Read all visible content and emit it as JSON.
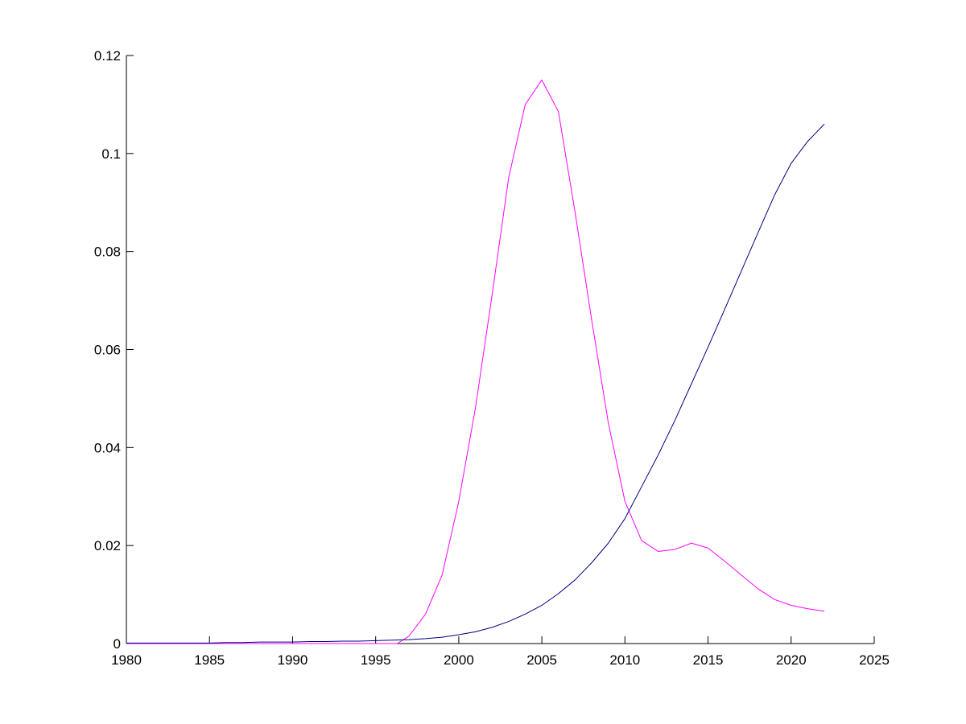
{
  "chart_data": {
    "type": "line",
    "title": "",
    "xlabel": "",
    "ylabel": "",
    "xlim": [
      1980,
      2025
    ],
    "ylim": [
      0,
      0.12
    ],
    "x_ticks": [
      1980,
      1985,
      1990,
      1995,
      2000,
      2005,
      2010,
      2015,
      2020,
      2025
    ],
    "x_tick_labels": [
      "1980",
      "1985",
      "1990",
      "1995",
      "2000",
      "2005",
      "2010",
      "2015",
      "2020",
      "2025"
    ],
    "y_ticks": [
      0,
      0.02,
      0.04,
      0.06,
      0.08,
      0.1,
      0.12
    ],
    "y_tick_labels": [
      "0",
      "0.02",
      "0.04",
      "0.06",
      "0.08",
      "0.1",
      "0.12"
    ],
    "grid": false,
    "legend": "none",
    "series": [
      {
        "color": "#ff00ff",
        "points": [
          [
            1980,
            0
          ],
          [
            1981,
            0
          ],
          [
            1982,
            0
          ],
          [
            1983,
            0
          ],
          [
            1984,
            0
          ],
          [
            1985,
            0
          ],
          [
            1986,
            0
          ],
          [
            1987,
            0
          ],
          [
            1988,
            0
          ],
          [
            1989,
            0
          ],
          [
            1990,
            0
          ],
          [
            1991,
            0
          ],
          [
            1992,
            0
          ],
          [
            1993,
            0
          ],
          [
            1994,
            0
          ],
          [
            1995,
            0
          ],
          [
            1996,
            0
          ],
          [
            1996.3,
            0
          ],
          [
            1997,
            0.0015
          ],
          [
            1998,
            0.006
          ],
          [
            1999,
            0.014
          ],
          [
            2000,
            0.029
          ],
          [
            2001,
            0.048
          ],
          [
            2002,
            0.071
          ],
          [
            2003,
            0.095
          ],
          [
            2004,
            0.11
          ],
          [
            2005,
            0.115
          ],
          [
            2006,
            0.1085
          ],
          [
            2007,
            0.088
          ],
          [
            2008,
            0.066
          ],
          [
            2009,
            0.045
          ],
          [
            2010,
            0.029
          ],
          [
            2011,
            0.021
          ],
          [
            2012,
            0.0188
          ],
          [
            2013,
            0.0192
          ],
          [
            2014,
            0.0205
          ],
          [
            2015,
            0.0195
          ],
          [
            2016,
            0.0168
          ],
          [
            2017,
            0.014
          ],
          [
            2018,
            0.0112
          ],
          [
            2019,
            0.009
          ],
          [
            2020,
            0.0078
          ],
          [
            2021,
            0.0071
          ],
          [
            2022,
            0.0066
          ]
        ]
      },
      {
        "color": "#000080",
        "points": [
          [
            1980,
            0.0001
          ],
          [
            1985,
            0.0001
          ],
          [
            1986,
            0.0002
          ],
          [
            1987,
            0.0002
          ],
          [
            1988,
            0.0003
          ],
          [
            1989,
            0.0003
          ],
          [
            1990,
            0.0003
          ],
          [
            1991,
            0.0004
          ],
          [
            1992,
            0.0004
          ],
          [
            1993,
            0.0005
          ],
          [
            1994,
            0.0005
          ],
          [
            1995,
            0.0006
          ],
          [
            1996,
            0.0007
          ],
          [
            1997,
            0.0008
          ],
          [
            1998,
            0.001
          ],
          [
            1999,
            0.0013
          ],
          [
            2000,
            0.0018
          ],
          [
            2001,
            0.0024
          ],
          [
            2002,
            0.0033
          ],
          [
            2003,
            0.0045
          ],
          [
            2004,
            0.006
          ],
          [
            2005,
            0.0078
          ],
          [
            2006,
            0.0102
          ],
          [
            2007,
            0.013
          ],
          [
            2008,
            0.0165
          ],
          [
            2009,
            0.0205
          ],
          [
            2010,
            0.0255
          ],
          [
            2011,
            0.032
          ],
          [
            2012,
            0.0385
          ],
          [
            2013,
            0.0455
          ],
          [
            2014,
            0.053
          ],
          [
            2015,
            0.0605
          ],
          [
            2016,
            0.0682
          ],
          [
            2017,
            0.076
          ],
          [
            2018,
            0.0838
          ],
          [
            2019,
            0.0915
          ],
          [
            2020,
            0.098
          ],
          [
            2021,
            0.1025
          ],
          [
            2022,
            0.106
          ]
        ]
      }
    ]
  }
}
